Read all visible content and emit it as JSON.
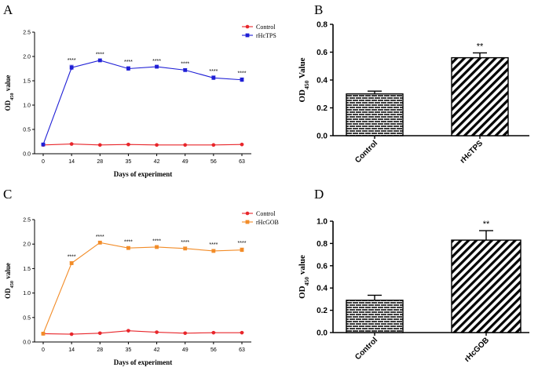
{
  "chart_data": [
    {
      "panel": "A",
      "type": "line",
      "title": "",
      "xlabel": "Days of experiment",
      "ylabel_main": "OD",
      "ylabel_sub": "450",
      "ylabel_tail": " value",
      "categories": [
        "0",
        "14",
        "28",
        "35",
        "42",
        "49",
        "56",
        "63"
      ],
      "ylim": [
        0,
        2.5
      ],
      "yticks": [
        0.0,
        0.5,
        1.0,
        1.5,
        2.0,
        2.5
      ],
      "ytick_labels": [
        "0.0",
        "0.5",
        "1.0",
        "1.5",
        "2.0",
        "2.5"
      ],
      "legend_position": "top-right",
      "series": [
        {
          "name": "Control",
          "color": "#e8262b",
          "marker": "circle",
          "values": [
            0.18,
            0.2,
            0.18,
            0.19,
            0.18,
            0.18,
            0.18,
            0.19
          ],
          "errors": [
            0.01,
            0.01,
            0.01,
            0.01,
            0.01,
            0.01,
            0.01,
            0.01
          ]
        },
        {
          "name": "rHcTPS",
          "color": "#1f1fd6",
          "marker": "square",
          "values": [
            0.19,
            1.77,
            1.92,
            1.75,
            1.79,
            1.72,
            1.56,
            1.52
          ],
          "errors": [
            0.01,
            0.05,
            0.02,
            0.04,
            0.02,
            0.03,
            0.04,
            0.04
          ]
        }
      ],
      "significance": [
        "",
        "****",
        "****",
        "****",
        "****",
        "****",
        "****",
        "****"
      ]
    },
    {
      "panel": "B",
      "type": "bar",
      "title": "",
      "xlabel": "",
      "ylabel_main": "OD",
      "ylabel_sub": "450",
      "ylabel_tail": " Value",
      "categories": [
        "Control",
        "rHcTPS"
      ],
      "values": [
        0.3,
        0.56
      ],
      "errors": [
        0.02,
        0.035
      ],
      "patterns": [
        "brick",
        "hatch"
      ],
      "significance": [
        "",
        "**"
      ],
      "ylim": [
        0,
        0.8
      ],
      "yticks": [
        0.0,
        0.2,
        0.4,
        0.6,
        0.8
      ],
      "ytick_labels": [
        "0.0",
        "0.2",
        "0.4",
        "0.6",
        "0.8"
      ]
    },
    {
      "panel": "C",
      "type": "line",
      "title": "",
      "xlabel": "Days of experiment",
      "ylabel_main": "OD",
      "ylabel_sub": "450",
      "ylabel_tail": " value",
      "categories": [
        "0",
        "14",
        "28",
        "35",
        "42",
        "49",
        "56",
        "63"
      ],
      "ylim": [
        0,
        2.5
      ],
      "yticks": [
        0.0,
        0.5,
        1.0,
        1.5,
        2.0,
        2.5
      ],
      "ytick_labels": [
        "0.0",
        "0.5",
        "1.0",
        "1.5",
        "2.0",
        "2.5"
      ],
      "legend_position": "top-right",
      "series": [
        {
          "name": "Control",
          "color": "#e8262b",
          "marker": "circle",
          "values": [
            0.17,
            0.16,
            0.18,
            0.23,
            0.2,
            0.18,
            0.19,
            0.19
          ],
          "errors": [
            0.01,
            0.01,
            0.01,
            0.01,
            0.01,
            0.01,
            0.01,
            0.01
          ]
        },
        {
          "name": "rHcGOB",
          "color": "#f28c28",
          "marker": "square",
          "values": [
            0.17,
            1.61,
            2.03,
            1.92,
            1.94,
            1.91,
            1.86,
            1.88
          ],
          "errors": [
            0.01,
            0.03,
            0.02,
            0.03,
            0.02,
            0.03,
            0.03,
            0.04
          ]
        }
      ],
      "significance": [
        "",
        "****",
        "****",
        "****",
        "****",
        "****",
        "****",
        "****"
      ]
    },
    {
      "panel": "D",
      "type": "bar",
      "title": "",
      "xlabel": "",
      "ylabel_main": "OD",
      "ylabel_sub": "450",
      "ylabel_tail": " value",
      "categories": [
        "Control",
        "rHcGOB"
      ],
      "values": [
        0.29,
        0.83
      ],
      "errors": [
        0.045,
        0.085
      ],
      "patterns": [
        "brick",
        "hatch"
      ],
      "significance": [
        "",
        "**"
      ],
      "ylim": [
        0,
        1.0
      ],
      "yticks": [
        0.0,
        0.2,
        0.4,
        0.6,
        0.8,
        1.0
      ],
      "ytick_labels": [
        "0.0",
        "0.2",
        "0.4",
        "0.6",
        "0.8",
        "1.0"
      ]
    }
  ]
}
